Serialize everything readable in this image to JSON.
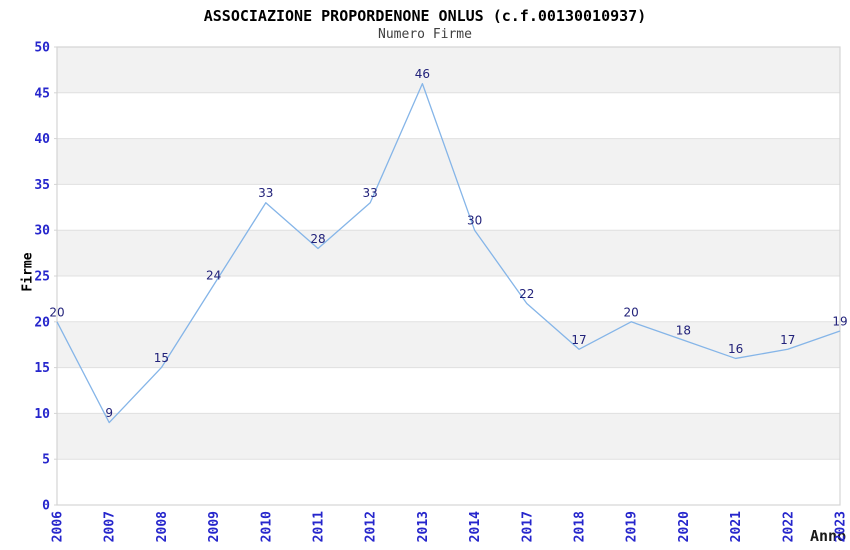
{
  "chart_data": {
    "type": "line",
    "title": "ASSOCIAZIONE PROPORDENONE ONLUS (c.f.00130010937)",
    "subtitle": "Numero Firme",
    "xlabel": "Anno",
    "ylabel": "Firme",
    "categories": [
      "2006",
      "2007",
      "2008",
      "2009",
      "2010",
      "2011",
      "2012",
      "2013",
      "2014",
      "2017",
      "2018",
      "2019",
      "2020",
      "2021",
      "2022",
      "2023"
    ],
    "values": [
      20,
      9,
      15,
      24,
      33,
      28,
      33,
      46,
      30,
      22,
      17,
      20,
      18,
      16,
      17,
      19
    ],
    "ylim": [
      0,
      50
    ],
    "ytick_step": 5,
    "yticks": [
      0,
      5,
      10,
      15,
      20,
      25,
      30,
      35,
      40,
      45,
      50
    ],
    "legend": "none",
    "grid": "horizontal-bands",
    "colors": {
      "line": "#85b5e8",
      "tick_label": "#2626cc",
      "data_label": "#22227a",
      "band": "#f2f2f2",
      "gridline": "#e0e0e0",
      "border": "#d4d4d4",
      "title": "#000000",
      "subtitle": "#3f3f3f",
      "background": "#ffffff"
    }
  }
}
